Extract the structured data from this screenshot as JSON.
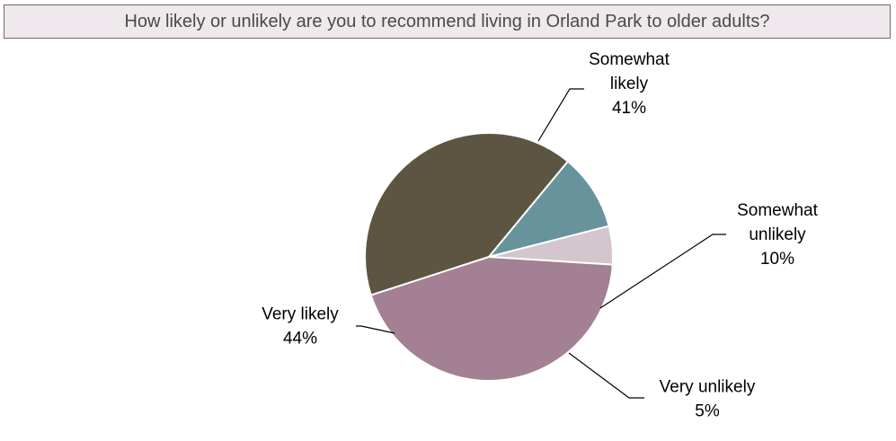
{
  "chart_data": {
    "type": "pie",
    "title": "How likely or unlikely are you to recommend living in Orland Park to older adults?",
    "slices": [
      {
        "label_lines": [
          "Somewhat",
          "likely"
        ],
        "percent_label": "41%",
        "value": 41,
        "color": "#5c5541"
      },
      {
        "label_lines": [
          "Somewhat",
          "unlikely"
        ],
        "percent_label": "10%",
        "value": 10,
        "color": "#67939c"
      },
      {
        "label_lines": [
          "Very unlikely"
        ],
        "percent_label": "5%",
        "value": 5,
        "color": "#d3c6cd"
      },
      {
        "label_lines": [
          "Very likely"
        ],
        "percent_label": "44%",
        "value": 44,
        "color": "#a38093"
      }
    ]
  }
}
